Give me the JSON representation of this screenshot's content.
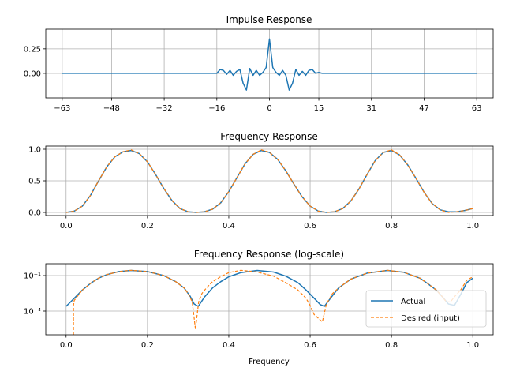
{
  "chart_data": [
    {
      "type": "line",
      "title": "Impulse Response",
      "xlabel": "",
      "ylabel": "",
      "xlim": [
        -68,
        68
      ],
      "ylim": [
        -0.25,
        0.45
      ],
      "xticks": [
        -63,
        -48,
        -32,
        -16,
        0,
        15,
        31,
        47,
        63
      ],
      "xtick_labels": [
        "−63",
        "−48",
        "−32",
        "−16",
        "0",
        "15",
        "31",
        "47",
        "63"
      ],
      "yticks": [
        0.25,
        0.0
      ],
      "ytick_labels": [
        "0.25",
        "0.00"
      ],
      "grid": true,
      "series": [
        {
          "color": "#1f77b4",
          "style": "solid",
          "x": [
            -63,
            -16,
            -15,
            -14,
            -13,
            -12,
            -11,
            -10,
            -9,
            -8,
            -7,
            -6,
            -5,
            -4,
            -3,
            -2,
            -1,
            0,
            1,
            2,
            3,
            4,
            5,
            6,
            7,
            8,
            9,
            10,
            11,
            12,
            13,
            14,
            15,
            16,
            63
          ],
          "y": [
            0.0,
            0.0,
            0.04,
            0.03,
            -0.01,
            0.03,
            -0.02,
            0.02,
            0.04,
            -0.1,
            -0.17,
            0.05,
            -0.02,
            0.03,
            -0.02,
            0.01,
            0.06,
            0.35,
            0.06,
            0.01,
            -0.02,
            0.03,
            -0.02,
            -0.17,
            -0.1,
            0.04,
            -0.02,
            0.02,
            -0.02,
            0.03,
            0.04,
            0.0,
            0.01,
            0.0,
            0.0
          ]
        }
      ]
    },
    {
      "type": "line",
      "title": "Frequency Response",
      "xlabel": "",
      "ylabel": "",
      "xlim": [
        -0.05,
        1.05
      ],
      "ylim": [
        -0.05,
        1.05
      ],
      "xticks": [
        0.0,
        0.2,
        0.4,
        0.6,
        0.8,
        1.0
      ],
      "xtick_labels": [
        "0.0",
        "0.2",
        "0.4",
        "0.6",
        "0.8",
        "1.0"
      ],
      "yticks": [
        0.0,
        0.5,
        1.0
      ],
      "ytick_labels": [
        "0.0",
        "0.5",
        "1.0"
      ],
      "grid": true,
      "series": [
        {
          "color": "#1f77b4",
          "style": "solid",
          "x": [
            0.0,
            0.02,
            0.04,
            0.06,
            0.08,
            0.1,
            0.12,
            0.14,
            0.16,
            0.18,
            0.2,
            0.22,
            0.24,
            0.26,
            0.28,
            0.3,
            0.32,
            0.34,
            0.36,
            0.38,
            0.4,
            0.42,
            0.44,
            0.46,
            0.48,
            0.5,
            0.52,
            0.54,
            0.56,
            0.58,
            0.6,
            0.62,
            0.64,
            0.66,
            0.68,
            0.7,
            0.72,
            0.74,
            0.76,
            0.78,
            0.8,
            0.82,
            0.84,
            0.86,
            0.88,
            0.9,
            0.92,
            0.94,
            0.96,
            0.98,
            1.0
          ],
          "y": [
            0.0,
            0.02,
            0.1,
            0.27,
            0.5,
            0.72,
            0.88,
            0.96,
            0.98,
            0.93,
            0.8,
            0.6,
            0.38,
            0.19,
            0.06,
            0.01,
            0.0,
            0.01,
            0.05,
            0.15,
            0.33,
            0.55,
            0.77,
            0.92,
            0.98,
            0.95,
            0.84,
            0.66,
            0.45,
            0.25,
            0.1,
            0.02,
            0.0,
            0.01,
            0.06,
            0.18,
            0.37,
            0.6,
            0.82,
            0.95,
            0.98,
            0.91,
            0.75,
            0.54,
            0.32,
            0.14,
            0.04,
            0.01,
            0.01,
            0.03,
            0.06
          ]
        },
        {
          "color": "#ff7f0e",
          "style": "dashed",
          "x": [
            0.0,
            0.02,
            0.04,
            0.06,
            0.08,
            0.1,
            0.12,
            0.14,
            0.16,
            0.18,
            0.2,
            0.22,
            0.24,
            0.26,
            0.28,
            0.3,
            0.32,
            0.34,
            0.36,
            0.38,
            0.4,
            0.42,
            0.44,
            0.46,
            0.48,
            0.5,
            0.52,
            0.54,
            0.56,
            0.58,
            0.6,
            0.62,
            0.64,
            0.66,
            0.68,
            0.7,
            0.72,
            0.74,
            0.76,
            0.78,
            0.8,
            0.82,
            0.84,
            0.86,
            0.88,
            0.9,
            0.92,
            0.94,
            0.96,
            0.98,
            1.0
          ],
          "y": [
            0.0,
            0.02,
            0.1,
            0.27,
            0.5,
            0.72,
            0.88,
            0.96,
            0.99,
            0.93,
            0.8,
            0.6,
            0.38,
            0.19,
            0.06,
            0.01,
            0.0,
            0.01,
            0.05,
            0.15,
            0.33,
            0.55,
            0.77,
            0.92,
            0.99,
            0.95,
            0.84,
            0.66,
            0.45,
            0.25,
            0.1,
            0.02,
            0.0,
            0.01,
            0.06,
            0.18,
            0.37,
            0.6,
            0.82,
            0.95,
            0.99,
            0.91,
            0.75,
            0.54,
            0.32,
            0.14,
            0.04,
            0.0,
            0.01,
            0.03,
            0.06
          ]
        }
      ]
    },
    {
      "type": "line",
      "title": "Frequency Response (log-scale)",
      "xlabel": "Frequency",
      "ylabel": "",
      "yscale": "log",
      "xlim": [
        -0.05,
        1.05
      ],
      "ylim": [
        1e-06,
        1
      ],
      "xticks": [
        0.0,
        0.2,
        0.4,
        0.6,
        0.8,
        1.0
      ],
      "xtick_labels": [
        "0.0",
        "0.2",
        "0.4",
        "0.6",
        "0.8",
        "1.0"
      ],
      "yticks": [
        0.1,
        0.0001
      ],
      "ytick_labels": [
        "10⁻¹",
        "10⁻⁴"
      ],
      "grid": true,
      "legend": {
        "loc": "lower right",
        "entries": [
          "Actual",
          "Desired (input)"
        ]
      },
      "series": [
        {
          "name": "Actual",
          "color": "#1f77b4",
          "style": "solid",
          "x": [
            0.0,
            0.02,
            0.04,
            0.06,
            0.08,
            0.1,
            0.13,
            0.16,
            0.2,
            0.24,
            0.27,
            0.29,
            0.305,
            0.315,
            0.325,
            0.34,
            0.36,
            0.38,
            0.4,
            0.43,
            0.47,
            0.51,
            0.54,
            0.57,
            0.59,
            0.61,
            0.625,
            0.635,
            0.65,
            0.67,
            0.7,
            0.74,
            0.79,
            0.83,
            0.87,
            0.89,
            0.91,
            0.925,
            0.94,
            0.955,
            0.97,
            0.985,
            1.0
          ],
          "y": [
            0.00025,
            0.0012,
            0.006,
            0.022,
            0.06,
            0.12,
            0.22,
            0.27,
            0.22,
            0.1,
            0.03,
            0.009,
            0.0018,
            0.0004,
            0.00025,
            0.0015,
            0.009,
            0.03,
            0.08,
            0.18,
            0.27,
            0.2,
            0.09,
            0.025,
            0.006,
            0.0012,
            0.00035,
            0.00025,
            0.0012,
            0.009,
            0.05,
            0.16,
            0.27,
            0.19,
            0.06,
            0.02,
            0.006,
            0.0016,
            0.0004,
            0.0003,
            0.0025,
            0.025,
            0.06
          ]
        },
        {
          "name": "Desired (input)",
          "color": "#ff7f0e",
          "style": "dashed",
          "x": [
            0.018,
            0.018,
            0.02,
            0.04,
            0.06,
            0.08,
            0.1,
            0.13,
            0.16,
            0.2,
            0.24,
            0.27,
            0.29,
            0.3,
            0.31,
            0.318,
            0.326,
            0.334,
            0.345,
            0.36,
            0.38,
            0.4,
            0.43,
            0.47,
            0.51,
            0.54,
            0.57,
            0.59,
            0.6,
            0.61,
            0.62,
            0.63,
            0.64,
            0.655,
            0.67,
            0.7,
            0.74,
            0.79,
            0.83,
            0.87,
            0.89,
            0.91,
            0.925,
            0.935,
            0.945,
            0.955,
            0.97,
            0.985,
            1.0
          ],
          "y": [
            1e-06,
            0.0003,
            0.0008,
            0.006,
            0.022,
            0.06,
            0.12,
            0.22,
            0.28,
            0.22,
            0.1,
            0.03,
            0.009,
            0.003,
            0.0006,
            3e-06,
            0.0006,
            0.003,
            0.009,
            0.03,
            0.08,
            0.18,
            0.28,
            0.2,
            0.09,
            0.025,
            0.006,
            0.0012,
            0.0003,
            5e-05,
            2.5e-05,
            1.2e-05,
            0.0004,
            0.003,
            0.009,
            0.05,
            0.16,
            0.28,
            0.19,
            0.06,
            0.02,
            0.006,
            0.0016,
            0.0006,
            0.0006,
            0.0016,
            0.006,
            0.04,
            0.08
          ]
        }
      ]
    }
  ]
}
